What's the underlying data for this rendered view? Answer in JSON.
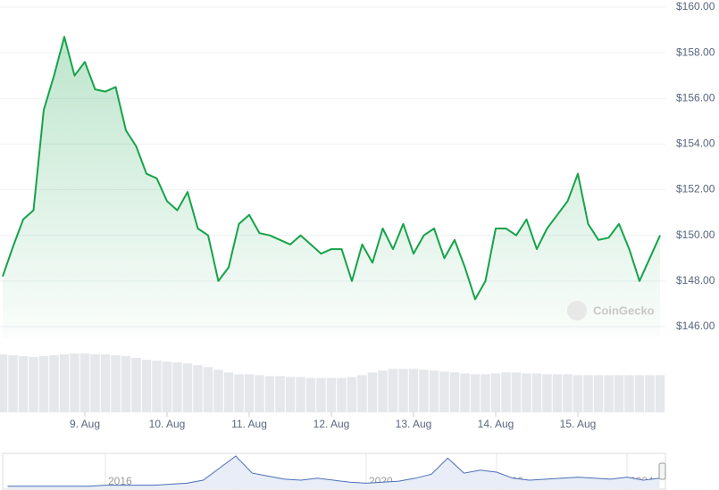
{
  "chart_data": {
    "type": "line",
    "color": "#16a34a",
    "grid": true,
    "watermark": "CoinGecko",
    "ylim": [
      146,
      160
    ],
    "yticks": [
      {
        "value": 146,
        "label": "$146.00"
      },
      {
        "value": 148,
        "label": "$148.00"
      },
      {
        "value": 150,
        "label": "$150.00"
      },
      {
        "value": 152,
        "label": "$152.00"
      },
      {
        "value": 154,
        "label": "$154.00"
      },
      {
        "value": 156,
        "label": "$156.00"
      },
      {
        "value": 158,
        "label": "$158.00"
      },
      {
        "value": 160,
        "label": "$160.00"
      }
    ],
    "categories": [
      null,
      null,
      null,
      null,
      null,
      null,
      null,
      null,
      "9. Aug",
      null,
      null,
      null,
      null,
      null,
      null,
      null,
      "10. Aug",
      null,
      null,
      null,
      null,
      null,
      null,
      null,
      "11. Aug",
      null,
      null,
      null,
      null,
      null,
      null,
      null,
      "12. Aug",
      null,
      null,
      null,
      null,
      null,
      null,
      null,
      "13. Aug",
      null,
      null,
      null,
      null,
      null,
      null,
      null,
      "14. Aug",
      null,
      null,
      null,
      null,
      null,
      null,
      null,
      "15. Aug",
      null,
      null,
      null,
      null,
      null,
      null,
      null,
      null
    ],
    "values": [
      148.2,
      149.5,
      150.7,
      151.1,
      155.5,
      157.0,
      158.7,
      157.0,
      157.6,
      156.4,
      156.3,
      156.5,
      154.6,
      153.9,
      152.7,
      152.5,
      151.5,
      151.1,
      151.9,
      150.3,
      150.0,
      148.0,
      148.6,
      150.5,
      150.9,
      150.1,
      150.0,
      149.8,
      149.6,
      150.0,
      149.6,
      149.2,
      149.4,
      149.4,
      148.0,
      149.6,
      148.8,
      150.3,
      149.4,
      150.5,
      149.2,
      150.0,
      150.3,
      149.0,
      149.8,
      148.6,
      147.2,
      148.0,
      150.3,
      150.3,
      150.0,
      150.7,
      149.4,
      150.3,
      150.9,
      151.5,
      152.7,
      150.5,
      149.8,
      149.9,
      150.5,
      149.4,
      148.0,
      149.0,
      150.0
    ],
    "volume": [
      64,
      63,
      62,
      61,
      62,
      63,
      64,
      65,
      65,
      64,
      64,
      63,
      62,
      60,
      58,
      57,
      56,
      55,
      54,
      52,
      50,
      47,
      44,
      42,
      42,
      41,
      40,
      40,
      39,
      39,
      38,
      38,
      38,
      38,
      39,
      41,
      44,
      46,
      48,
      48,
      48,
      47,
      46,
      45,
      44,
      43,
      42,
      42,
      43,
      44,
      44,
      43,
      43,
      42,
      42,
      42,
      41,
      41,
      41,
      41,
      41,
      41,
      41,
      41,
      41
    ],
    "navigator": {
      "categories": [
        null,
        null,
        null,
        null,
        null,
        null,
        "2016",
        null,
        null,
        null,
        null,
        null,
        null,
        null,
        "2018",
        null,
        null,
        null,
        null,
        null,
        null,
        null,
        "2020",
        null,
        null,
        null,
        null,
        null,
        null,
        null,
        "2022",
        null,
        null,
        null,
        null,
        null,
        null,
        null,
        "2024",
        null,
        null
      ],
      "values": [
        2,
        2,
        2,
        2,
        2,
        2,
        3,
        3,
        3,
        3,
        4,
        5,
        8,
        20,
        32,
        15,
        12,
        9,
        8,
        10,
        8,
        6,
        5,
        6,
        7,
        10,
        14,
        30,
        15,
        18,
        16,
        10,
        8,
        9,
        10,
        11,
        10,
        9,
        11,
        8,
        10
      ]
    }
  }
}
